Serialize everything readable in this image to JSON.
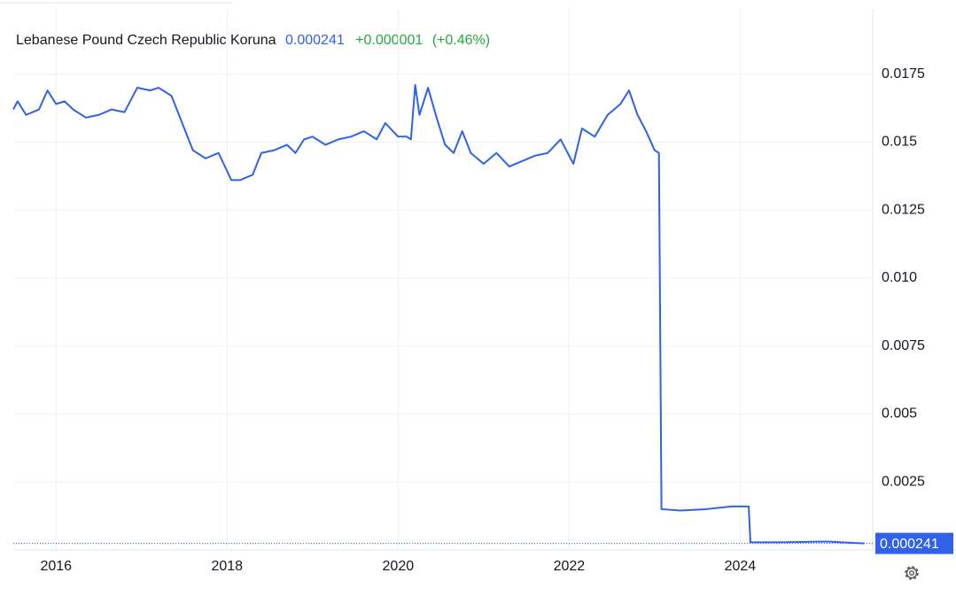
{
  "chart_data": {
    "type": "line",
    "title": "Lebanese Pound Czech Republic Koruna",
    "price": "0.000241",
    "change": "+0.000001",
    "change_pct": "(+0.46%)",
    "x": [
      2015.5,
      2015.55,
      2015.65,
      2015.8,
      2015.9,
      2016.0,
      2016.1,
      2016.2,
      2016.35,
      2016.5,
      2016.65,
      2016.8,
      2016.95,
      2017.1,
      2017.2,
      2017.35,
      2017.5,
      2017.6,
      2017.75,
      2017.9,
      2018.05,
      2018.15,
      2018.3,
      2018.4,
      2018.55,
      2018.7,
      2018.8,
      2018.9,
      2019.0,
      2019.15,
      2019.3,
      2019.45,
      2019.6,
      2019.75,
      2019.85,
      2020.0,
      2020.1,
      2020.15,
      2020.2,
      2020.25,
      2020.35,
      2020.45,
      2020.55,
      2020.65,
      2020.75,
      2020.85,
      2021.0,
      2021.15,
      2021.3,
      2021.45,
      2021.6,
      2021.75,
      2021.9,
      2022.05,
      2022.15,
      2022.3,
      2022.45,
      2022.6,
      2022.7,
      2022.8,
      2022.9,
      2023.0,
      2023.05,
      2023.08,
      2023.3,
      2023.6,
      2023.9,
      2024.1,
      2024.12,
      2024.5,
      2025.0,
      2025.45
    ],
    "series": [
      {
        "name": "Lebanese Pound Czech Republic Koruna",
        "color": "#2f62e8",
        "values": [
          0.0162,
          0.0165,
          0.016,
          0.0162,
          0.0169,
          0.0164,
          0.0165,
          0.0162,
          0.0159,
          0.016,
          0.0162,
          0.0161,
          0.017,
          0.0169,
          0.017,
          0.0167,
          0.0155,
          0.0147,
          0.0144,
          0.0146,
          0.0136,
          0.0136,
          0.0138,
          0.0146,
          0.0147,
          0.0149,
          0.0146,
          0.0151,
          0.0152,
          0.0149,
          0.0151,
          0.0152,
          0.0154,
          0.0151,
          0.0157,
          0.0152,
          0.0152,
          0.0151,
          0.0171,
          0.016,
          0.017,
          0.0159,
          0.0149,
          0.0146,
          0.0154,
          0.0146,
          0.0142,
          0.0146,
          0.0141,
          0.0143,
          0.0145,
          0.0146,
          0.0151,
          0.0142,
          0.0155,
          0.0152,
          0.016,
          0.0164,
          0.0169,
          0.016,
          0.0154,
          0.0147,
          0.0146,
          0.0015,
          0.00145,
          0.0015,
          0.0016,
          0.0016,
          0.00028,
          0.00028,
          0.00031,
          0.000241
        ]
      }
    ],
    "xlim": [
      2015.5,
      2025.55
    ],
    "xticks": [
      2016,
      2018,
      2020,
      2022,
      2024
    ],
    "ylim": [
      0,
      0.0199
    ],
    "yticks": [
      0.0025,
      0.005,
      0.0075,
      {
        "value": 0.01,
        "label": "0.010"
      },
      0.0125,
      0.015,
      0.0175
    ],
    "grid": true
  }
}
